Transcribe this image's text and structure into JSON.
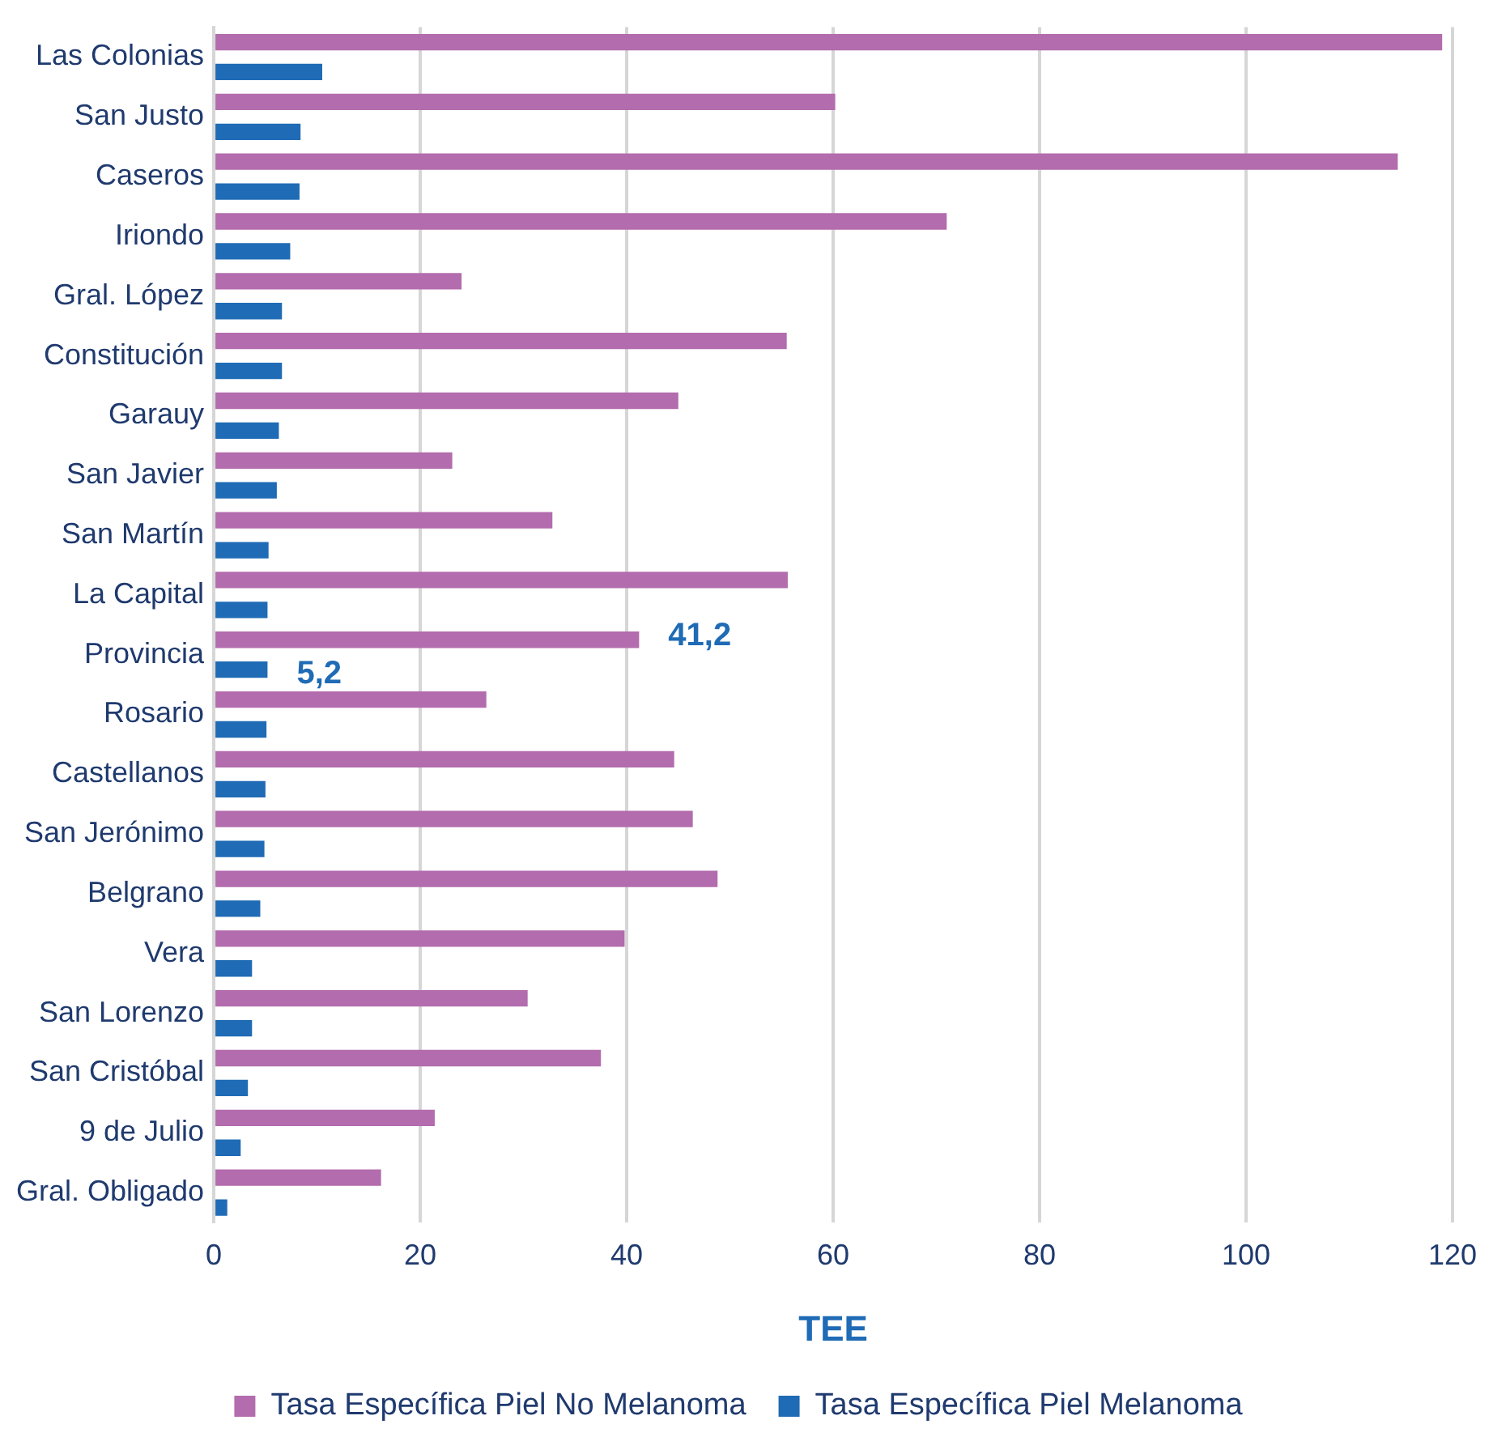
{
  "chart_data": {
    "type": "bar",
    "orientation": "horizontal",
    "xlabel": "TEE",
    "categories": [
      "Las Colonias",
      "San Justo",
      "Caseros",
      "Iriondo",
      "Gral. López",
      "Constitución",
      "Garauy",
      "San Javier",
      "San Martín",
      "La Capital",
      "Provincia",
      "Rosario",
      "Castellanos",
      "San Jerónimo",
      "Belgrano",
      "Vera",
      "San Lorenzo",
      "San Cristóbal",
      "9 de Julio",
      "Gral. Obligado"
    ],
    "series": [
      {
        "name": "Tasa Específica Piel No Melanoma",
        "color": "#b36cad",
        "values": [
          119,
          60.2,
          114.7,
          71,
          24,
          55.5,
          45,
          23.1,
          32.8,
          55.6,
          41.2,
          26.4,
          44.6,
          46.4,
          48.8,
          39.8,
          30.4,
          37.5,
          21.4,
          16.2
        ],
        "value_labels": [
          null,
          null,
          null,
          null,
          null,
          null,
          null,
          null,
          null,
          null,
          "41,2",
          null,
          null,
          null,
          null,
          null,
          null,
          null,
          null,
          null
        ]
      },
      {
        "name": "Tasa Específica Piel Melanoma",
        "color": "#1f6bb5",
        "values": [
          10.5,
          8.4,
          8.3,
          7.4,
          6.6,
          6.6,
          6.3,
          6.1,
          5.3,
          5.2,
          5.2,
          5.1,
          5,
          4.9,
          4.5,
          3.7,
          3.7,
          3.3,
          2.6,
          1.3
        ],
        "value_labels": [
          null,
          null,
          null,
          null,
          null,
          null,
          null,
          null,
          null,
          null,
          "5,2",
          null,
          null,
          null,
          null,
          null,
          null,
          null,
          null,
          null
        ]
      }
    ],
    "xlim": [
      0,
      120
    ],
    "xticks": [
      0,
      20,
      40,
      60,
      80,
      100,
      120
    ],
    "grid": "x",
    "legend": "bottom"
  }
}
